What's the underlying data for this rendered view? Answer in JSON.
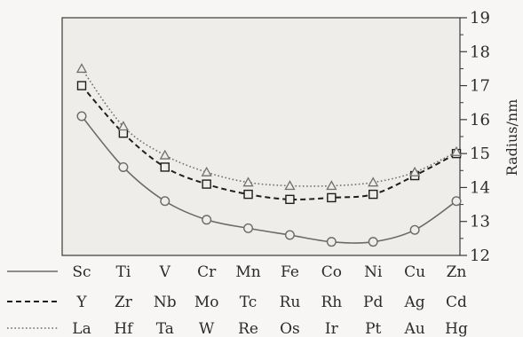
{
  "chart_data": {
    "type": "line",
    "ylabel": "Radius/nm",
    "ylim": [
      12,
      19
    ],
    "y_ticks": [
      12,
      13,
      14,
      15,
      16,
      17,
      18,
      19
    ],
    "x_positions": 10,
    "grid": false,
    "y_axis_side": "right",
    "category_rows": [
      {
        "line_style": "solid",
        "labels": [
          "Sc",
          "Ti",
          "V",
          "Cr",
          "Mn",
          "Fe",
          "Co",
          "Ni",
          "Cu",
          "Zn"
        ]
      },
      {
        "line_style": "dashed",
        "labels": [
          "Y",
          "Zr",
          "Nb",
          "Mo",
          "Tc",
          "Ru",
          "Rh",
          "Pd",
          "Ag",
          "Cd"
        ]
      },
      {
        "line_style": "dotted",
        "labels": [
          "La",
          "Hf",
          "Ta",
          "W",
          "Re",
          "Os",
          "Ir",
          "Pt",
          "Au",
          "Hg"
        ]
      }
    ],
    "series": [
      {
        "marker": "circle",
        "line_style": "solid",
        "color": "#6a6a6a",
        "values": [
          16.1,
          14.6,
          13.6,
          13.05,
          12.8,
          12.6,
          12.4,
          12.4,
          12.75,
          13.6
        ]
      },
      {
        "marker": "square",
        "line_style": "dashed",
        "color": "#1e1e1e",
        "values": [
          17.0,
          15.6,
          14.6,
          14.1,
          13.8,
          13.65,
          13.7,
          13.8,
          14.35,
          15.0
        ]
      },
      {
        "marker": "triangle",
        "line_style": "dotted",
        "color": "#707070",
        "values": [
          17.5,
          15.8,
          14.95,
          14.45,
          14.15,
          14.05,
          14.05,
          14.15,
          14.45,
          15.05
        ]
      }
    ]
  }
}
